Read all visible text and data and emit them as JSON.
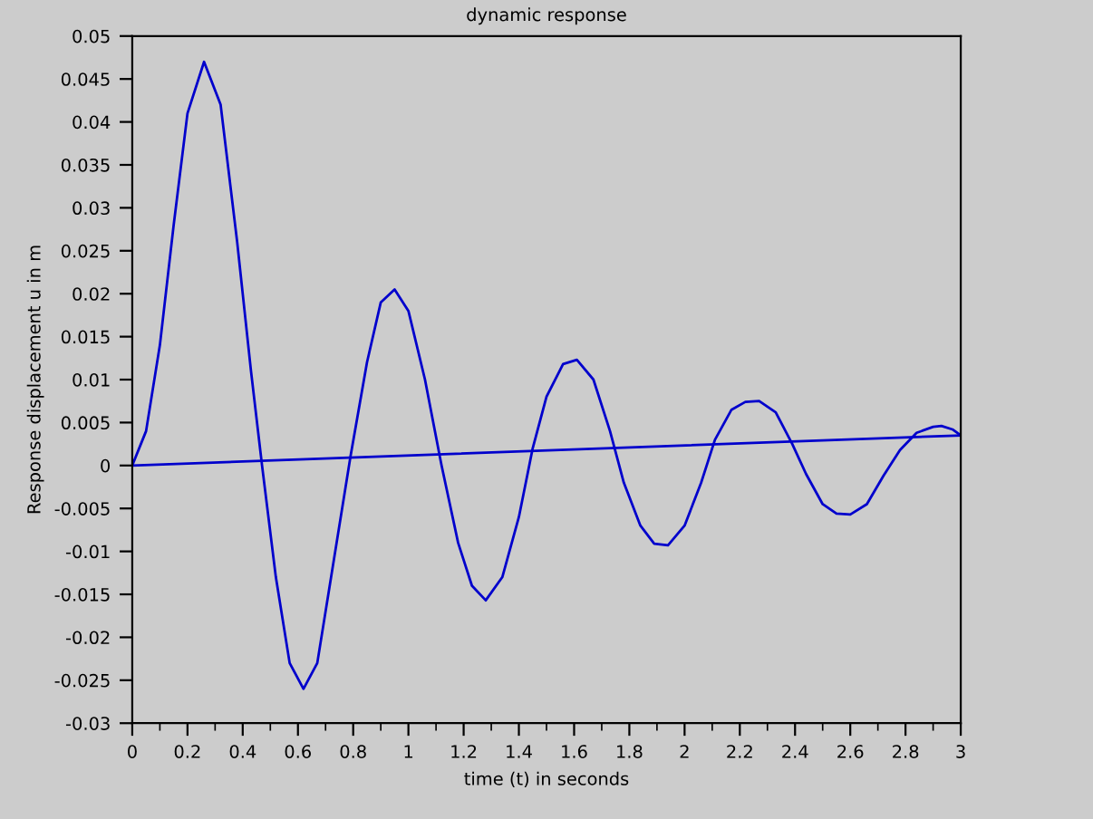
{
  "chart_data": {
    "type": "line",
    "title": "dynamic response",
    "xlabel": "time (t) in seconds",
    "ylabel": "Response displacement u in m",
    "series": [
      {
        "color": "#0000cc",
        "x": [
          0,
          0.05,
          0.1,
          0.15,
          0.2,
          0.26,
          0.32,
          0.38,
          0.43,
          0.47,
          0.52,
          0.57,
          0.62,
          0.67,
          0.72,
          0.79,
          0.85,
          0.9,
          0.95,
          1.0,
          1.06,
          1.12,
          1.18,
          1.23,
          1.28,
          1.34,
          1.4,
          1.45,
          1.5,
          1.56,
          1.61,
          1.67,
          1.73,
          1.78,
          1.84,
          1.89,
          1.94,
          2.0,
          2.06,
          2.11,
          2.17,
          2.22,
          2.27,
          2.33,
          2.39,
          2.44,
          2.5,
          2.55,
          2.6,
          2.66,
          2.72,
          2.78,
          2.84,
          2.9,
          2.93,
          2.97,
          3.0
        ],
        "values": [
          0,
          0.004,
          0.014,
          0.028,
          0.041,
          0.047,
          0.042,
          0.026,
          0.011,
          0.0,
          -0.013,
          -0.023,
          -0.026,
          -0.023,
          -0.013,
          0.001,
          0.012,
          0.019,
          0.0205,
          0.018,
          0.01,
          0.0,
          -0.009,
          -0.014,
          -0.0157,
          -0.013,
          -0.006,
          0.002,
          0.008,
          0.0118,
          0.0123,
          0.01,
          0.004,
          -0.002,
          -0.007,
          -0.0091,
          -0.0093,
          -0.007,
          -0.002,
          0.003,
          0.0065,
          0.0074,
          0.0075,
          0.0062,
          0.0025,
          -0.001,
          -0.0045,
          -0.0056,
          -0.0057,
          -0.0045,
          -0.0012,
          0.0018,
          0.0038,
          0.0045,
          0.0046,
          0.0042,
          0.0035
        ]
      },
      {
        "color": "#0000cc",
        "x": [
          0,
          3
        ],
        "values": [
          0,
          0.0035
        ]
      }
    ],
    "xlim": [
      0,
      3
    ],
    "ylim": [
      -0.03,
      0.05
    ],
    "xticks": [
      0,
      0.2,
      0.4,
      0.6,
      0.8,
      1,
      1.2,
      1.4,
      1.6,
      1.8,
      2,
      2.2,
      2.4,
      2.6,
      2.8,
      3
    ],
    "yticks": [
      -0.03,
      -0.025,
      -0.02,
      -0.015,
      -0.01,
      -0.005,
      0,
      0.005,
      0.01,
      0.015,
      0.02,
      0.025,
      0.03,
      0.035,
      0.04,
      0.045,
      0.05
    ],
    "grid": false,
    "legend": false,
    "marker": "none",
    "line_style": "solid"
  }
}
